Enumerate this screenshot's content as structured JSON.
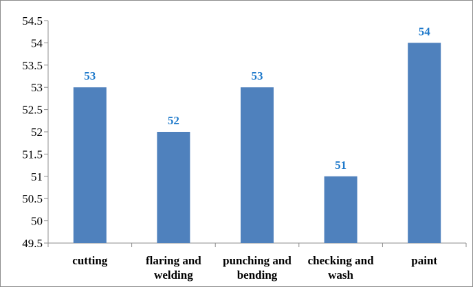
{
  "chart_data": {
    "type": "bar",
    "categories": [
      [
        "cutting"
      ],
      [
        "flaring and",
        "welding"
      ],
      [
        "punching and",
        "bending"
      ],
      [
        "checking and",
        "wash"
      ],
      [
        "paint"
      ]
    ],
    "values": [
      53,
      52,
      53,
      51,
      54
    ],
    "data_labels": [
      "53",
      "52",
      "53",
      "51",
      "54"
    ],
    "yticks": [
      "49.5",
      "50",
      "50.5",
      "51",
      "51.5",
      "52",
      "52.5",
      "53",
      "53.5",
      "54",
      "54.5"
    ],
    "ylim": [
      49.5,
      54.5
    ],
    "title": "",
    "xlabel": "",
    "ylabel": "",
    "grid": false,
    "legend": "none",
    "colors": {
      "bar": "#4F81BD",
      "data_label": "#1F7ACB",
      "axis": "#8C8C8C"
    }
  }
}
